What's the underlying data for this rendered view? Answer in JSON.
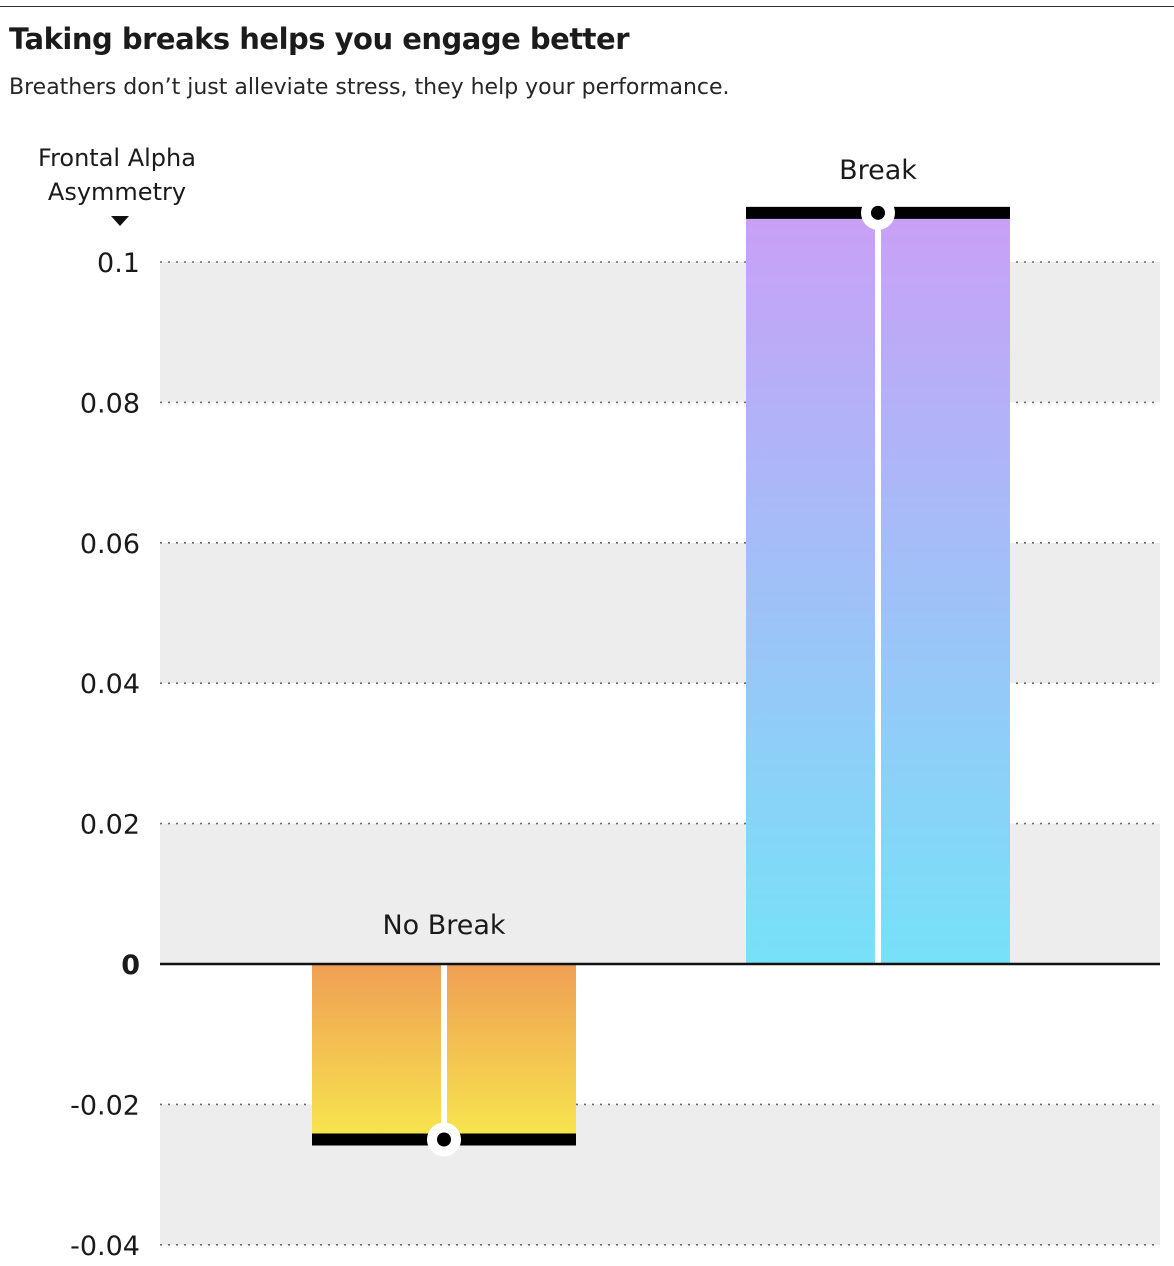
{
  "header": {
    "title": "Taking breaks helps you engage better",
    "subtitle": "Breathers don’t just alleviate stress, they help your performance."
  },
  "chart_data": {
    "type": "bar",
    "ylabel": "Frontal Alpha Asymmetry",
    "ylabel_lines": [
      "Frontal Alpha",
      "Asymmetry"
    ],
    "categories": [
      "No Break",
      "Break"
    ],
    "values": [
      -0.025,
      0.107
    ],
    "ylim": [
      -0.04,
      0.1
    ],
    "yticks": [
      0.1,
      0.08,
      0.06,
      0.04,
      0.02,
      0,
      -0.02,
      -0.04
    ],
    "ytick_labels": [
      "0.1",
      "0.08",
      "0.06",
      "0.04",
      "0.02",
      "0",
      "-0.02",
      "-0.04"
    ],
    "grid": "dotted horizontal gridlines with alternating gray bands",
    "colors": {
      "no_break_top": "#EF9F55",
      "no_break_bottom": "#F7E64E",
      "break_top": "#C9A0F7",
      "break_bottom": "#77E1F8",
      "band": "#EDEDED",
      "cap": "#000000"
    }
  }
}
